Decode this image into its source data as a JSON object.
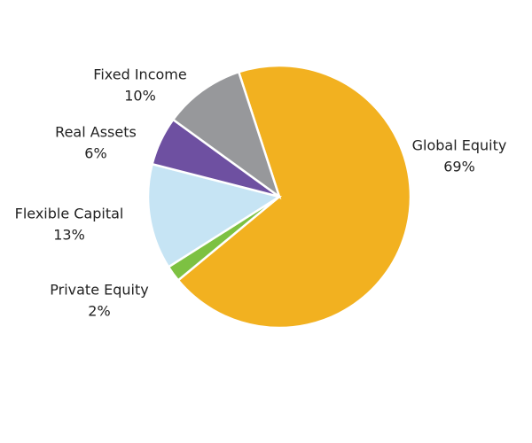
{
  "chart_data": {
    "type": "pie",
    "categories": [
      "Global Equity",
      "Private Equity",
      "Flexible Capital",
      "Real Assets",
      "Fixed Income"
    ],
    "values": [
      69,
      2,
      13,
      6,
      10
    ],
    "value_labels": [
      "69%",
      "2%",
      "13%",
      "6%",
      "10%"
    ],
    "colors": [
      "#f2b120",
      "#7dc142",
      "#c6e4f4",
      "#6e50a1",
      "#97989b"
    ]
  }
}
